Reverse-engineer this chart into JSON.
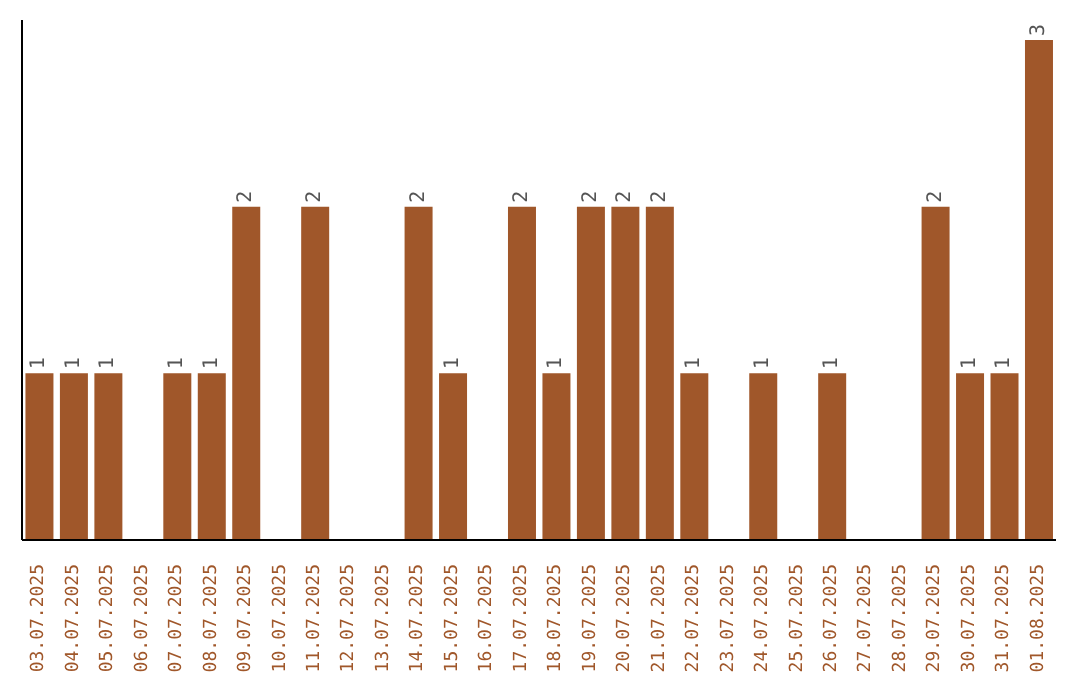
{
  "chart_data": {
    "type": "bar",
    "categories": [
      "03.07.2025",
      "04.07.2025",
      "05.07.2025",
      "06.07.2025",
      "07.07.2025",
      "08.07.2025",
      "09.07.2025",
      "10.07.2025",
      "11.07.2025",
      "12.07.2025",
      "13.07.2025",
      "14.07.2025",
      "15.07.2025",
      "16.07.2025",
      "17.07.2025",
      "18.07.2025",
      "19.07.2025",
      "20.07.2025",
      "21.07.2025",
      "22.07.2025",
      "23.07.2025",
      "24.07.2025",
      "25.07.2025",
      "26.07.2025",
      "27.07.2025",
      "28.07.2025",
      "29.07.2025",
      "30.07.2025",
      "31.07.2025",
      "01.08.2025"
    ],
    "values": [
      1,
      1,
      1,
      0,
      1,
      1,
      2,
      0,
      2,
      0,
      0,
      2,
      1,
      0,
      2,
      1,
      2,
      2,
      2,
      1,
      0,
      1,
      0,
      1,
      0,
      0,
      2,
      1,
      1,
      3
    ],
    "value_labels": [
      "1",
      "1",
      "1",
      null,
      "1",
      "1",
      "2",
      null,
      "2",
      null,
      null,
      "2",
      "1",
      null,
      "2",
      "1",
      "2",
      "2",
      "2",
      "1",
      null,
      "1",
      null,
      "1",
      null,
      null,
      "2",
      "1",
      "1",
      "3"
    ],
    "color": "#a0572a",
    "grid": false,
    "legend": false
  }
}
